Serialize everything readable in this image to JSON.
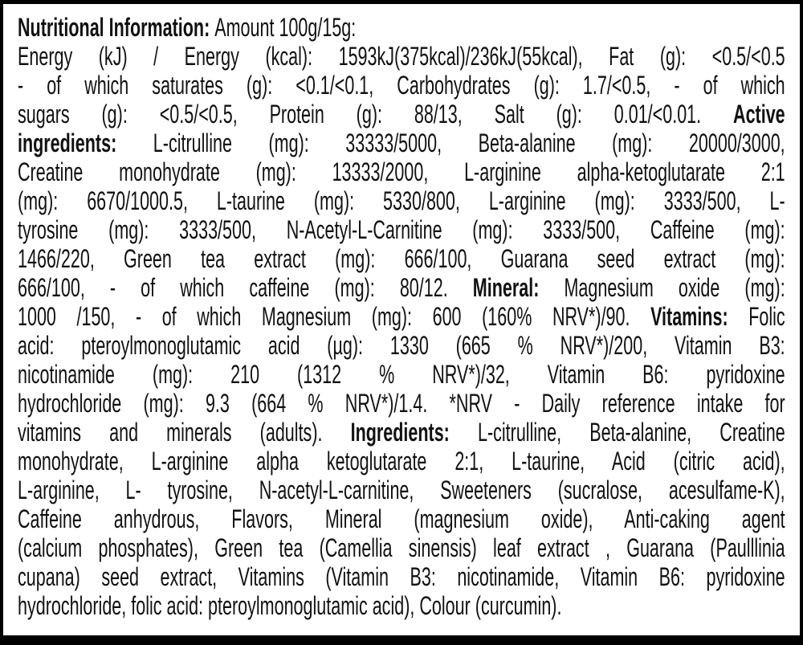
{
  "lines": [
    {
      "last": true,
      "segs": [
        {
          "b": true,
          "t": "Nutritional Information: "
        },
        {
          "b": false,
          "t": "Amount 100g/15g:"
        }
      ]
    },
    {
      "segs": [
        {
          "b": false,
          "t": "Energy (kJ) / Energy (kcal): 1593kJ(375kcal)/236kJ(55kcal), Fat (g): <0.5/<0.5"
        }
      ]
    },
    {
      "segs": [
        {
          "b": false,
          "t": "- of which saturates (g): <0.1/<0.1, Carbohydrates (g): 1.7/<0.5, - of which"
        }
      ]
    },
    {
      "segs": [
        {
          "b": false,
          "t": "sugars (g): <0.5/<0.5, Protein (g): 88/13, Salt (g): 0.01/<0.01. "
        },
        {
          "b": true,
          "t": "Active"
        }
      ]
    },
    {
      "segs": [
        {
          "b": true,
          "t": "ingredients: "
        },
        {
          "b": false,
          "t": "L-citrulline (mg): 33333/5000, Beta-alanine (mg): 20000/3000,"
        }
      ]
    },
    {
      "segs": [
        {
          "b": false,
          "t": "Creatine monohydrate (mg): 13333/2000, L-arginine alpha-ketoglutarate 2:1"
        }
      ]
    },
    {
      "segs": [
        {
          "b": false,
          "t": "(mg): 6670/1000.5, L-taurine (mg): 5330/800, L-arginine (mg): 3333/500, L-"
        }
      ]
    },
    {
      "segs": [
        {
          "b": false,
          "t": "tyrosine (mg): 3333/500, N-Acetyl-L-Carnitine (mg): 3333/500, Caffeine (mg):"
        }
      ]
    },
    {
      "segs": [
        {
          "b": false,
          "t": "1466/220, Green tea extract (mg): 666/100, Guarana seed extract (mg):"
        }
      ]
    },
    {
      "segs": [
        {
          "b": false,
          "t": "666/100, - of which caffeine (mg): 80/12. "
        },
        {
          "b": true,
          "t": "Mineral: "
        },
        {
          "b": false,
          "t": "Magnesium oxide (mg):"
        }
      ]
    },
    {
      "segs": [
        {
          "b": false,
          "t": "1000 /150, - of which Magnesium (mg): 600 (160% NRV*)/90. "
        },
        {
          "b": true,
          "t": "Vitamins: "
        },
        {
          "b": false,
          "t": "Folic"
        }
      ]
    },
    {
      "segs": [
        {
          "b": false,
          "t": "acid: pteroylmonoglutamic acid (µg): 1330 (665 % NRV*)/200, Vitamin B3:"
        }
      ]
    },
    {
      "segs": [
        {
          "b": false,
          "t": "nicotinamide (mg): 210 (1312 % NRV*)/32, Vitamin B6: pyridoxine"
        }
      ]
    },
    {
      "segs": [
        {
          "b": false,
          "t": "hydrochloride (mg): 9.3 (664 % NRV*)/1.4. *NRV - Daily reference intake for"
        }
      ]
    },
    {
      "segs": [
        {
          "b": false,
          "t": "vitamins and minerals (adults). "
        },
        {
          "b": true,
          "t": "Ingredients: "
        },
        {
          "b": false,
          "t": "L-citrulline, Beta-alanine, Creatine"
        }
      ]
    },
    {
      "segs": [
        {
          "b": false,
          "t": "monohydrate, L-arginine alpha ketoglutarate 2:1, L-taurine, Acid (citric acid),"
        }
      ]
    },
    {
      "segs": [
        {
          "b": false,
          "t": "L-arginine, L- tyrosine, N-acetyl-L-carnitine, Sweeteners (sucralose, acesulfame-K),"
        }
      ]
    },
    {
      "segs": [
        {
          "b": false,
          "t": "Caffeine anhydrous, Flavors, Mineral (magnesium oxide), Anti-caking agent"
        }
      ]
    },
    {
      "segs": [
        {
          "b": false,
          "t": "(calcium phosphates), Green tea (Camellia sinensis) leaf extract , Guarana (Paulllinia"
        }
      ]
    },
    {
      "segs": [
        {
          "b": false,
          "t": "cupana) seed extract, Vitamins (Vitamin B3: nicotinamide, Vitamin B6: pyridoxine"
        }
      ]
    },
    {
      "last": true,
      "segs": [
        {
          "b": false,
          "t": "hydrochloride, folic acid: pteroylmonoglutamic acid), Colour (curcumin)."
        }
      ]
    }
  ]
}
